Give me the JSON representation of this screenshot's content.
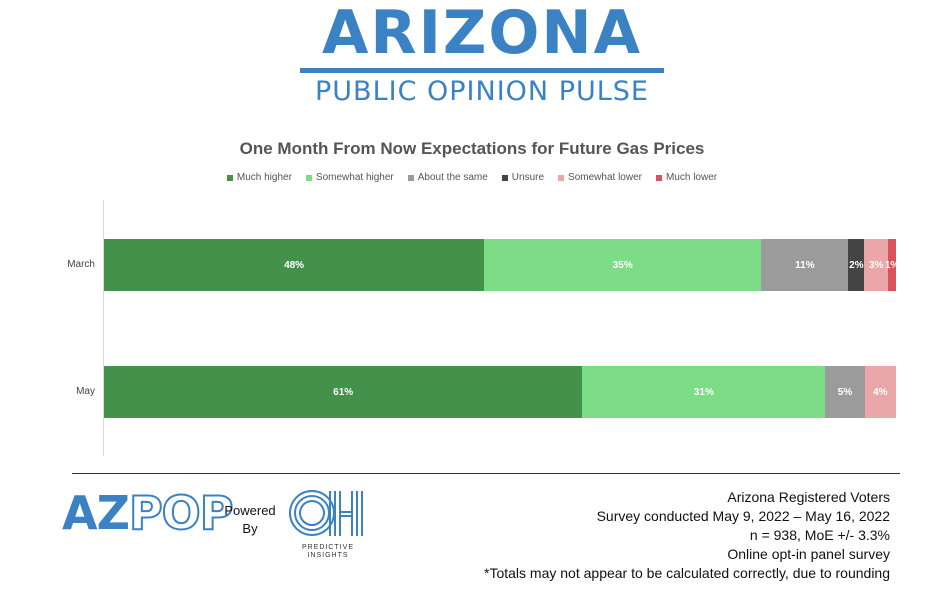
{
  "header": {
    "title": "ARIZONA",
    "subtitle": "PUBLIC OPINION PULSE"
  },
  "chart_data": {
    "type": "bar",
    "orientation": "horizontal",
    "stacked": true,
    "title": "One Month From Now Expectations for Future Gas Prices",
    "categories": [
      "March",
      "May"
    ],
    "series": [
      {
        "name": "Much higher",
        "color": "#43914a",
        "values": [
          48,
          61
        ],
        "labels": [
          "48%",
          "61%"
        ]
      },
      {
        "name": "Somewhat higher",
        "color": "#7ddc86",
        "values": [
          35,
          31
        ],
        "labels": [
          "35%",
          "31%"
        ]
      },
      {
        "name": "About the same",
        "color": "#9b9b9b",
        "values": [
          11,
          5
        ],
        "labels": [
          "11%",
          "5%"
        ]
      },
      {
        "name": "Unsure",
        "color": "#444444",
        "values": [
          2,
          0
        ],
        "labels": [
          "2%",
          ""
        ]
      },
      {
        "name": "Somewhat lower",
        "color": "#eaa6a9",
        "values": [
          3,
          4
        ],
        "labels": [
          "3%",
          "4%"
        ]
      },
      {
        "name": "Much lower",
        "color": "#d9535b",
        "values": [
          1,
          0
        ],
        "labels": [
          "1%",
          ""
        ]
      }
    ],
    "xlim": [
      0,
      100
    ],
    "legend_position": "top",
    "grid": false
  },
  "footer": {
    "brand_az": "AZ",
    "brand_pop": "POP",
    "powered_line1": "Powered",
    "powered_line2": "By",
    "partner_mark": "OH",
    "partner_tag_line1": "PREDICTIVE",
    "partner_tag_line2": "INSIGHTS",
    "notes": [
      "Arizona Registered Voters",
      "Survey conducted May 9, 2022 – May 16, 2022",
      "n = 938, MoE +/- 3.3%",
      "Online opt-in panel survey",
      "*Totals may not appear to be calculated correctly, due to rounding"
    ]
  }
}
